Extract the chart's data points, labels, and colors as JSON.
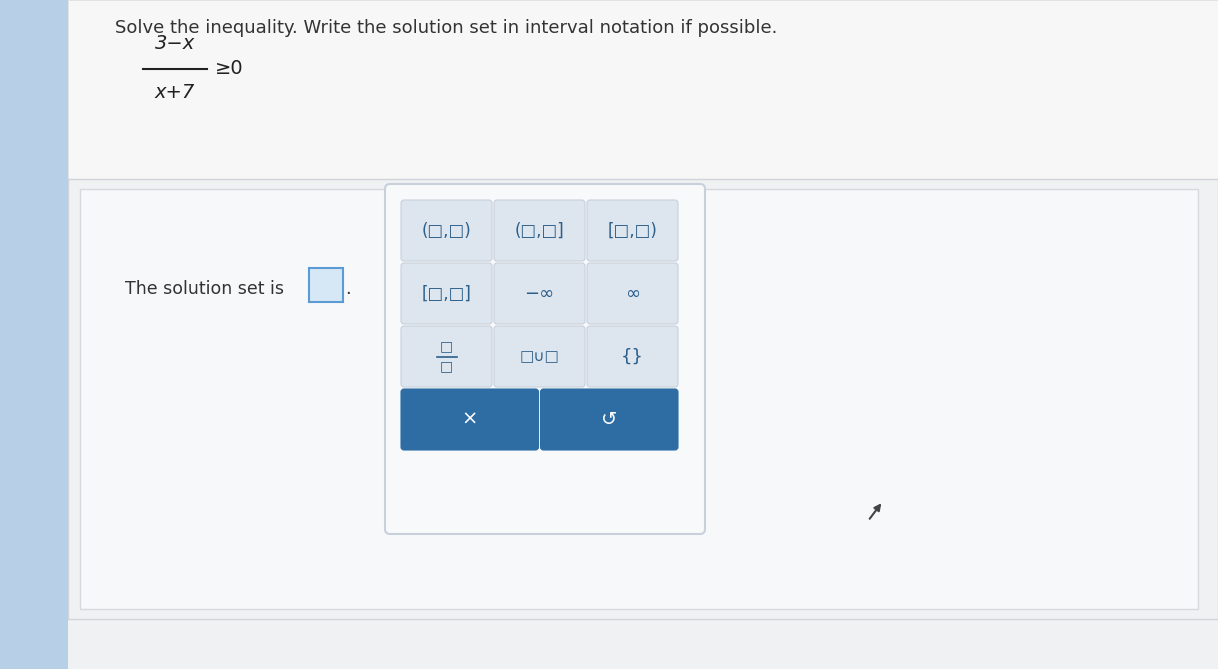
{
  "left_bar_color": "#b8cfe8",
  "main_bg": "#e8edf2",
  "content_bg": "#f0f2f5",
  "top_section_bg": "#eaecef",
  "bottom_section_bg": "#f5f5f7",
  "white": "#ffffff",
  "title_text": "Solve the inequality. Write the solution set in interval notation if possible.",
  "solution_label": "The solution set is",
  "input_box_fill": "#d6e8f5",
  "input_box_border": "#5b9bd5",
  "popup_bg": "#f8f9fb",
  "popup_border": "#c8d0dc",
  "btn_bg": "#dde5ee",
  "btn_border": "#c8d0dc",
  "btn_text_color": "#2c5f8a",
  "blue_btn_bg": "#2e6da4",
  "blue_btn_text": "#ffffff",
  "text_color": "#333333",
  "eq_color": "#222222"
}
